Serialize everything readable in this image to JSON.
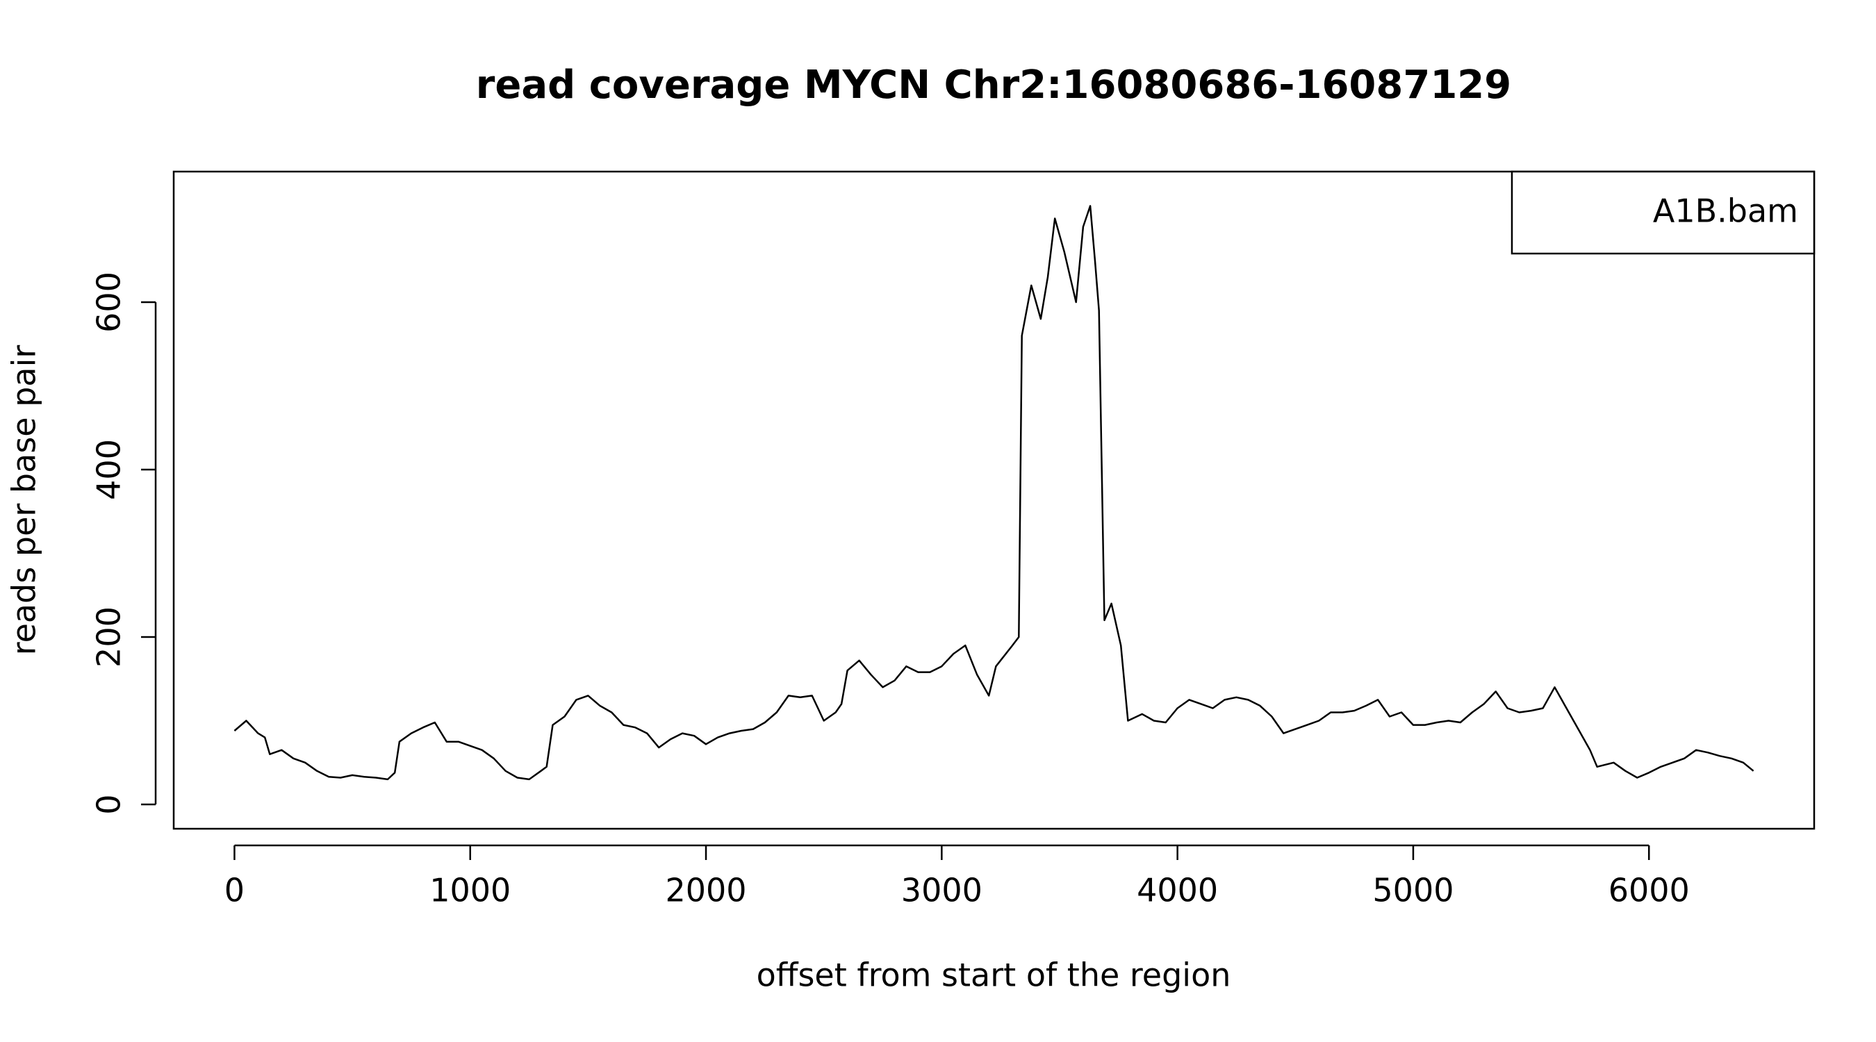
{
  "chart_data": {
    "type": "line",
    "title": "read coverage MYCN  Chr2:16080686-16087129",
    "x_label": "offset from start of the region",
    "y_label": "reads per base pair",
    "xlim": [
      -257.7,
      6700.7
    ],
    "ylim": [
      -29,
      756
    ],
    "xticks": [
      0,
      1000,
      2000,
      3000,
      4000,
      5000,
      6000
    ],
    "yticks": [
      0,
      200,
      400,
      600
    ],
    "legend": "topright",
    "grid": false,
    "series": [
      {
        "name": "A1B.bam",
        "color": "#000000",
        "x": [
          0,
          50,
          100,
          129,
          150,
          200,
          250,
          300,
          350,
          400,
          450,
          500,
          550,
          600,
          650,
          680,
          700,
          750,
          800,
          850,
          900,
          950,
          1000,
          1050,
          1100,
          1150,
          1200,
          1250,
          1300,
          1324,
          1350,
          1400,
          1450,
          1500,
          1550,
          1600,
          1650,
          1700,
          1750,
          1800,
          1850,
          1900,
          1950,
          2000,
          2050,
          2100,
          2150,
          2200,
          2250,
          2300,
          2350,
          2400,
          2450,
          2500,
          2550,
          2575,
          2600,
          2650,
          2700,
          2750,
          2800,
          2850,
          2900,
          2950,
          3000,
          3050,
          3100,
          3150,
          3200,
          3230,
          3300,
          3327,
          3340,
          3380,
          3420,
          3450,
          3480,
          3520,
          3570,
          3600,
          3630,
          3650,
          3667,
          3690,
          3720,
          3760,
          3790,
          3850,
          3900,
          3950,
          4000,
          4050,
          4100,
          4150,
          4200,
          4250,
          4300,
          4350,
          4400,
          4450,
          4500,
          4550,
          4600,
          4650,
          4700,
          4750,
          4800,
          4850,
          4900,
          4950,
          5000,
          5050,
          5100,
          5150,
          5200,
          5250,
          5300,
          5350,
          5400,
          5450,
          5500,
          5550,
          5600,
          5650,
          5700,
          5750,
          5780,
          5850,
          5900,
          5950,
          6000,
          6050,
          6100,
          6150,
          6200,
          6250,
          6300,
          6350,
          6400,
          6443
        ],
        "values": [
          88,
          100,
          85,
          80,
          60,
          65,
          55,
          50,
          40,
          33,
          32,
          35,
          33,
          32,
          30,
          38,
          75,
          85,
          92,
          98,
          75,
          75,
          70,
          65,
          55,
          40,
          32,
          30,
          40,
          45,
          95,
          105,
          125,
          130,
          118,
          110,
          95,
          92,
          85,
          68,
          78,
          85,
          82,
          72,
          80,
          85,
          88,
          90,
          98,
          110,
          130,
          128,
          130,
          100,
          110,
          120,
          160,
          172,
          155,
          140,
          148,
          165,
          158,
          158,
          165,
          180,
          190,
          155,
          130,
          165,
          190,
          200,
          560,
          620,
          580,
          630,
          700,
          660,
          600,
          690,
          715,
          650,
          590,
          220,
          240,
          190,
          100,
          108,
          100,
          98,
          115,
          125,
          120,
          115,
          125,
          128,
          125,
          118,
          105,
          85,
          90,
          95,
          100,
          110,
          110,
          112,
          118,
          125,
          105,
          110,
          95,
          95,
          98,
          100,
          98,
          110,
          120,
          135,
          115,
          110,
          112,
          115,
          140,
          115,
          90,
          65,
          45,
          50,
          40,
          32,
          38,
          45,
          50,
          55,
          65,
          62,
          58,
          55,
          50,
          40
        ]
      }
    ]
  }
}
